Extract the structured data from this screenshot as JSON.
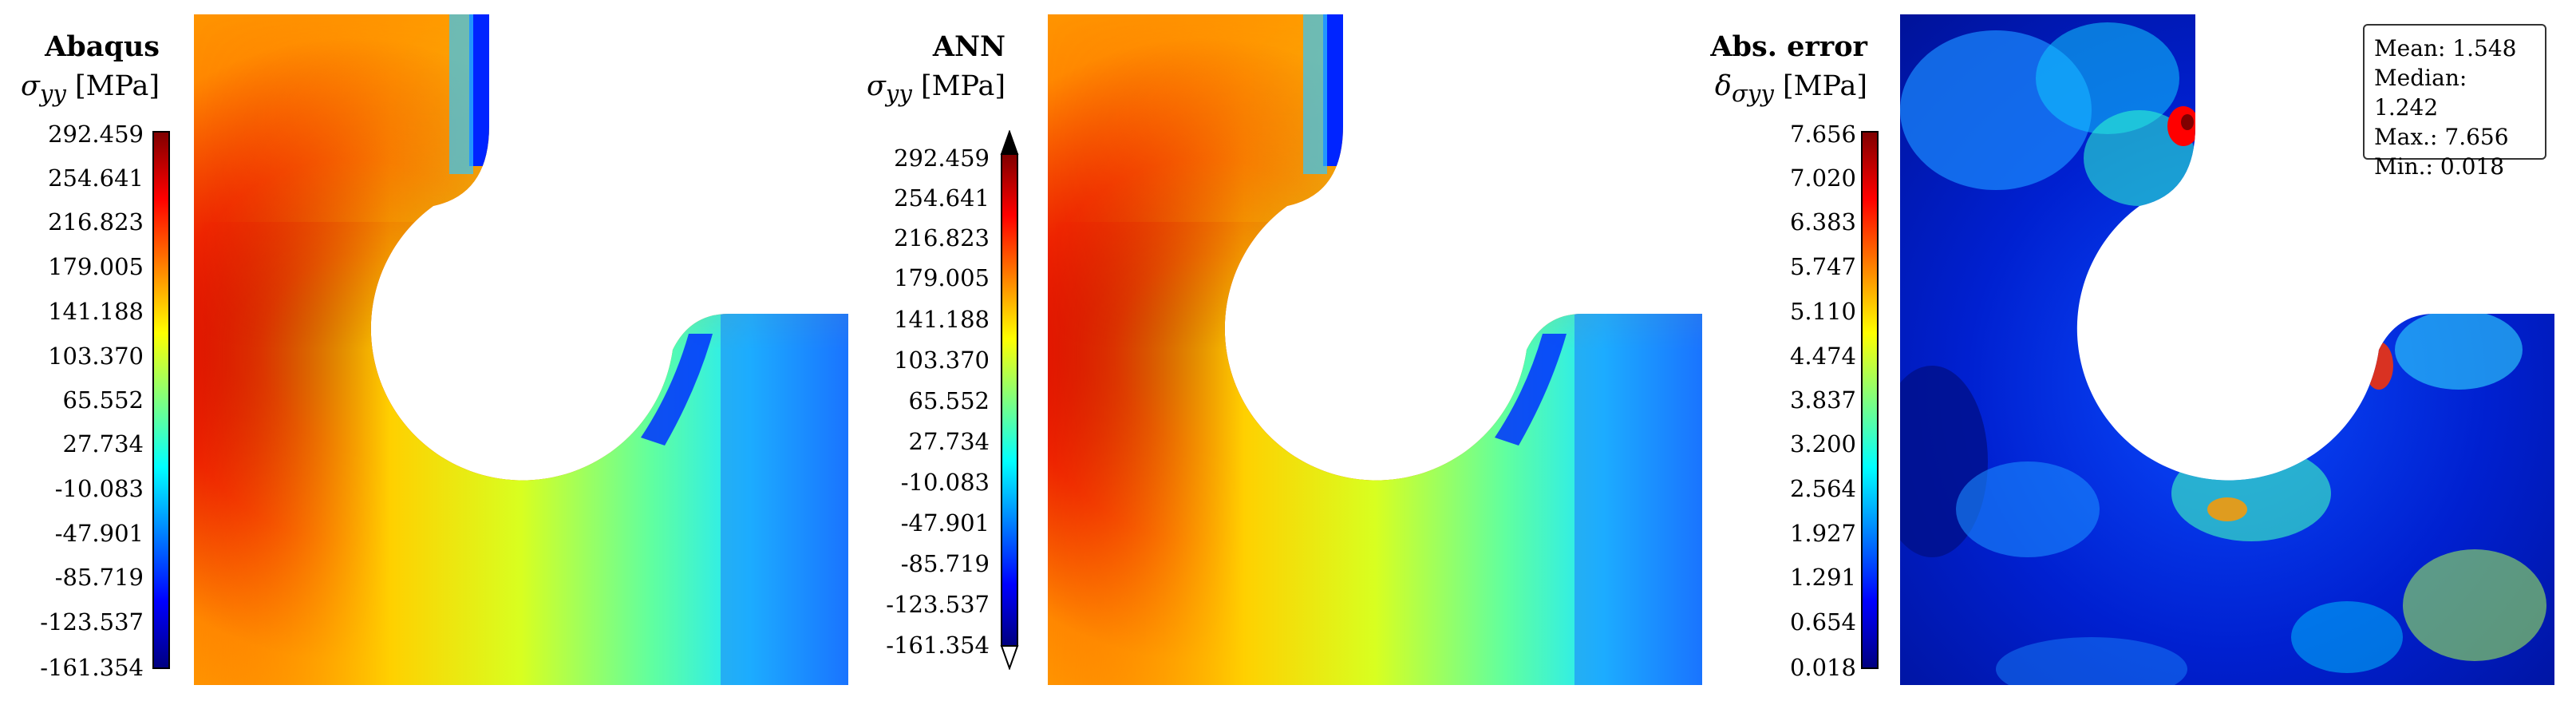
{
  "panels": [
    {
      "title": "Abaqus",
      "symbol": "σ",
      "subscript": "yy",
      "unit": "[MPa]",
      "ticks": [
        "292.459",
        "254.641",
        "216.823",
        "179.005",
        "141.188",
        "103.370",
        "65.552",
        "27.734",
        "-10.083",
        "-47.901",
        "-85.719",
        "-123.537",
        "-161.354"
      ],
      "colormap": "jet"
    },
    {
      "title": "ANN",
      "symbol": "σ",
      "subscript": "yy",
      "unit": "[MPa]",
      "ticks": [
        "292.459",
        "254.641",
        "216.823",
        "179.005",
        "141.188",
        "103.370",
        "65.552",
        "27.734",
        "-10.083",
        "-47.901",
        "-85.719",
        "-123.537",
        "-161.354"
      ],
      "colormap": "jet"
    },
    {
      "title": "Abs. error",
      "symbol": "δ",
      "subscript": "σyy",
      "unit": "[MPa]",
      "ticks": [
        "7.656",
        "7.020",
        "6.383",
        "5.747",
        "5.110",
        "4.474",
        "3.837",
        "3.200",
        "2.564",
        "1.927",
        "1.291",
        "0.654",
        "0.018"
      ],
      "colormap": "jet"
    }
  ],
  "stats": {
    "mean": "Mean: 1.548",
    "median": "Median: 1.242",
    "max": "Max.: 7.656",
    "min": "Min.: 0.018"
  },
  "colors": {
    "jet_top": "#7f0000",
    "jet_red": "#ff0000",
    "jet_yellow": "#ffff00",
    "jet_cyan": "#00ffff",
    "jet_blue": "#0000ff",
    "jet_bottom": "#00007f"
  }
}
